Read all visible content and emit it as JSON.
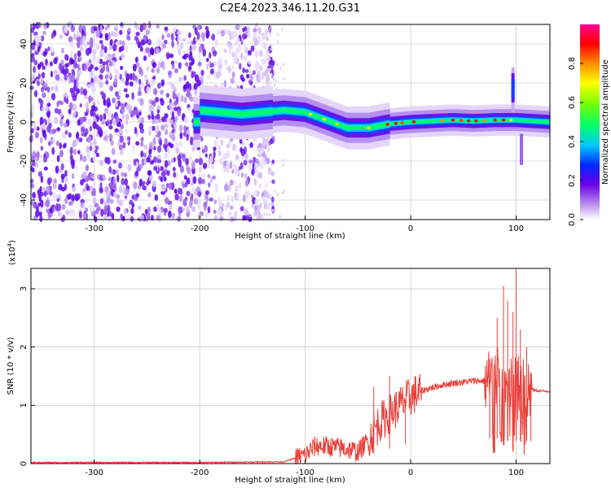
{
  "title": "C2E4.2023.346.11.20.G31",
  "chart_data": [
    {
      "type": "heatmap",
      "title": "C2E4.2023.346.11.20.G31",
      "xlabel": "Height of straight line (km)",
      "ylabel": "Frequency (Hz)",
      "xlim": [
        -360,
        132
      ],
      "ylim": [
        -50,
        50
      ],
      "x_ticks": [
        -300,
        -200,
        -100,
        0,
        100
      ],
      "y_ticks": [
        -40,
        -20,
        0,
        20,
        40
      ],
      "colorbar": {
        "label": "Normalized spectral amplitude",
        "range": [
          0,
          1
        ],
        "ticks": [
          "0.0",
          "0.2",
          "0.4",
          "0.6",
          "0.8"
        ]
      },
      "features": {
        "noise_region_x": [
          -360,
          -140
        ],
        "signal_center": [
          [
            -200,
            6
          ],
          [
            -180,
            5
          ],
          [
            -160,
            4
          ],
          [
            -140,
            5
          ],
          [
            -120,
            6
          ],
          [
            -100,
            5
          ],
          [
            -80,
            1
          ],
          [
            -60,
            -3
          ],
          [
            -40,
            -3
          ],
          [
            -20,
            -1
          ],
          [
            0,
            0
          ],
          [
            20,
            0.5
          ],
          [
            40,
            1
          ],
          [
            60,
            0.5
          ],
          [
            80,
            1
          ],
          [
            100,
            1
          ],
          [
            132,
            0
          ]
        ],
        "spike_x": 97
      }
    },
    {
      "type": "line",
      "title": "",
      "xlabel": "Height of straight line (km)",
      "ylabel": "SNR (10 * v/v)",
      "y_multiplier": "(x10^4)",
      "y_multiplier_base": "(x10",
      "y_multiplier_exp": "4",
      "y_multiplier_close": ")",
      "xlim": [
        -360,
        132
      ],
      "ylim": [
        0,
        3.35
      ],
      "x_ticks": [
        -300,
        -200,
        -100,
        0,
        100
      ],
      "y_ticks": [
        0,
        1,
        2,
        3
      ],
      "color": "#e8403a",
      "envelope": [
        [
          -360,
          0.02
        ],
        [
          -200,
          0.02
        ],
        [
          -120,
          0.03
        ],
        [
          -100,
          0.15
        ],
        [
          -90,
          0.3
        ],
        [
          -80,
          0.3
        ],
        [
          -60,
          0.25
        ],
        [
          -50,
          0.2
        ],
        [
          -40,
          0.4
        ],
        [
          -30,
          0.7
        ],
        [
          -20,
          0.85
        ],
        [
          -10,
          1.0
        ],
        [
          0,
          1.15
        ],
        [
          10,
          1.25
        ],
        [
          20,
          1.3
        ],
        [
          30,
          1.35
        ],
        [
          40,
          1.38
        ],
        [
          50,
          1.4
        ],
        [
          60,
          1.42
        ],
        [
          70,
          1.42
        ],
        [
          80,
          1.45
        ],
        [
          90,
          1.3
        ],
        [
          100,
          1.3
        ],
        [
          110,
          1.3
        ],
        [
          120,
          1.25
        ],
        [
          132,
          1.24
        ]
      ],
      "peaks": [
        [
          -35,
          1.32
        ],
        [
          -20,
          1.5
        ],
        [
          -5,
          1.1
        ],
        [
          75,
          1.8
        ],
        [
          82,
          2.5
        ],
        [
          88,
          3.05
        ],
        [
          92,
          2.8
        ],
        [
          97,
          2.6
        ],
        [
          100,
          3.35
        ],
        [
          104,
          2.3
        ],
        [
          110,
          2.0
        ],
        [
          114,
          1.3
        ]
      ]
    }
  ]
}
